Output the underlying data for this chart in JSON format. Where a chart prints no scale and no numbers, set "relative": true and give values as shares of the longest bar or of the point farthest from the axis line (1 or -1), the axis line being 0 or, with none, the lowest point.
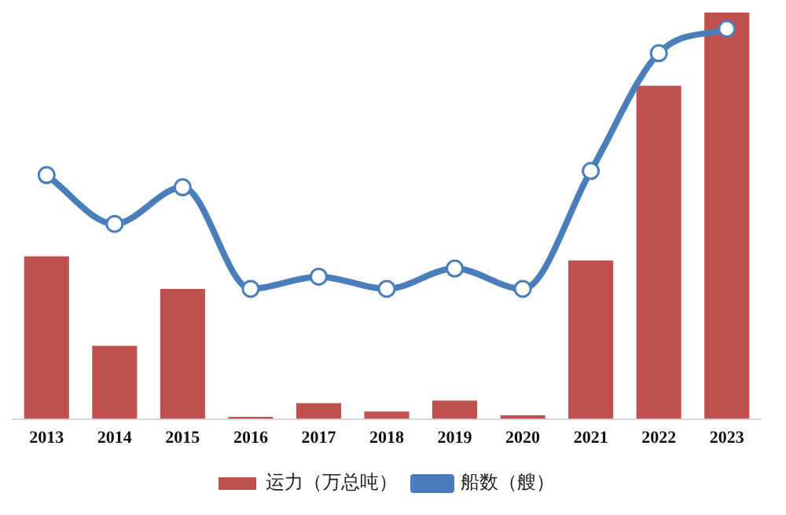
{
  "chart_data": {
    "type": "bar",
    "relative": true,
    "categories": [
      "2013",
      "2014",
      "2015",
      "2016",
      "2017",
      "2018",
      "2019",
      "2020",
      "2021",
      "2022",
      "2023"
    ],
    "series": [
      {
        "name": "运力（万总吨）",
        "color": "#c0504d",
        "values": [
          0.4,
          0.18,
          0.32,
          0.005,
          0.039,
          0.018,
          0.045,
          0.009,
          0.39,
          0.82,
          1
        ]
      },
      {
        "name": "船数（艘）",
        "type": "line",
        "color": "#4a7ebb",
        "marker": "circle",
        "values": [
          0.6,
          0.48,
          0.57,
          0.32,
          0.35,
          0.32,
          0.37,
          0.32,
          0.61,
          0.9,
          0.96
        ]
      }
    ],
    "legend": "bottom",
    "grid": false
  }
}
